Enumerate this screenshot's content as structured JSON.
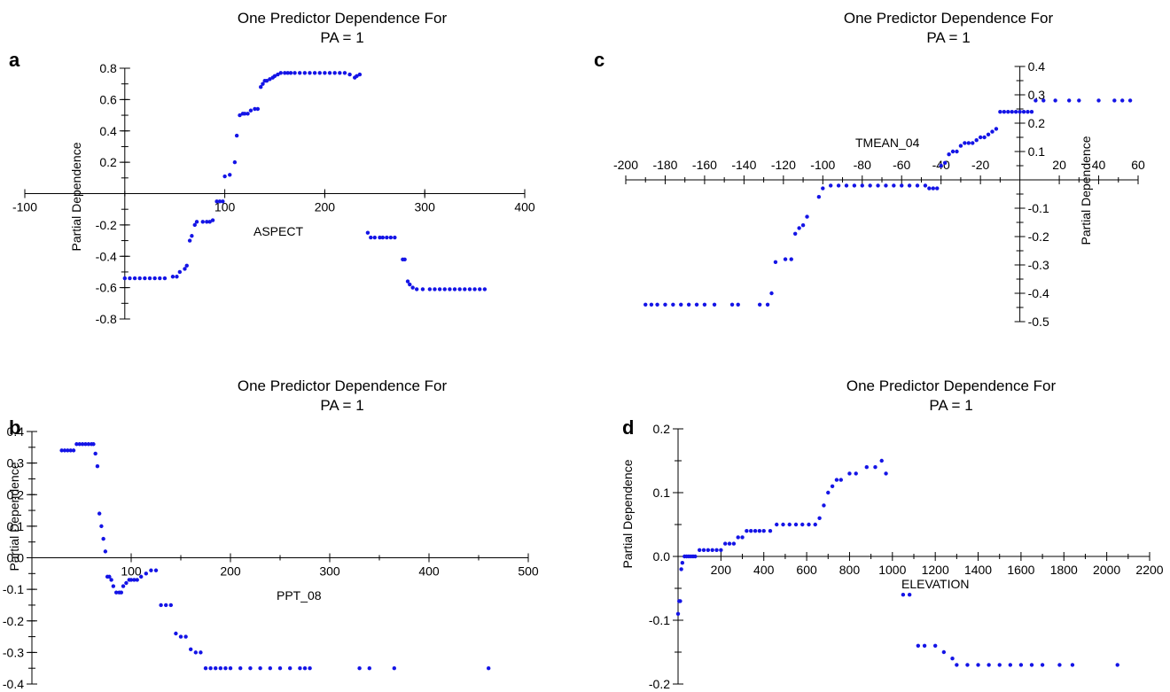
{
  "figure": {
    "colors": {
      "points": "#1414e6",
      "axes": "#000000"
    },
    "panels": [
      {
        "id": "a",
        "letter": "a"
      },
      {
        "id": "b",
        "letter": "b"
      },
      {
        "id": "c",
        "letter": "c"
      },
      {
        "id": "d",
        "letter": "d"
      }
    ]
  },
  "chart_data": [
    {
      "type": "scatter",
      "panel": "a",
      "title": "One Predictor Dependence For PA = 1",
      "title_lines": [
        "One Predictor Dependence For",
        "PA = 1"
      ],
      "xlabel": "ASPECT",
      "ylabel": "Partial Dependence",
      "xlim": [
        -100,
        400
      ],
      "ylim": [
        -0.8,
        0.8
      ],
      "xticks": [
        -100,
        100,
        200,
        300,
        400
      ],
      "xtick_labels": [
        "-100",
        "100",
        "200",
        "300",
        "400"
      ],
      "yticks": [
        -0.8,
        -0.6,
        -0.4,
        -0.2,
        0.2,
        0.4,
        0.6,
        0.8
      ],
      "ytick_labels": [
        "-0.8",
        "-0.6",
        "-0.4",
        "-0.2",
        "0.2",
        "0.4",
        "0.6",
        "0.8"
      ],
      "grid": false,
      "x": [
        0,
        5,
        10,
        15,
        20,
        25,
        30,
        35,
        40,
        48,
        52,
        55,
        60,
        62,
        65,
        67,
        70,
        72,
        78,
        82,
        85,
        88,
        92,
        95,
        98,
        100,
        105,
        110,
        112,
        115,
        118,
        120,
        123,
        126,
        130,
        133,
        136,
        138,
        140,
        142,
        145,
        148,
        150,
        153,
        156,
        160,
        163,
        166,
        170,
        175,
        180,
        185,
        190,
        195,
        200,
        205,
        210,
        215,
        220,
        225,
        230,
        232,
        235,
        243,
        246,
        250,
        255,
        258,
        262,
        266,
        270,
        278,
        280,
        283,
        285,
        288,
        292,
        298,
        305,
        310,
        315,
        320,
        325,
        330,
        335,
        340,
        345,
        350,
        355,
        360
      ],
      "y": [
        -0.54,
        -0.54,
        -0.54,
        -0.54,
        -0.54,
        -0.54,
        -0.54,
        -0.54,
        -0.54,
        -0.53,
        -0.53,
        -0.5,
        -0.48,
        -0.46,
        -0.3,
        -0.27,
        -0.2,
        -0.18,
        -0.18,
        -0.18,
        -0.18,
        -0.17,
        -0.05,
        -0.05,
        -0.05,
        0.11,
        0.12,
        0.2,
        0.37,
        0.5,
        0.51,
        0.51,
        0.51,
        0.53,
        0.54,
        0.54,
        0.68,
        0.7,
        0.72,
        0.72,
        0.73,
        0.74,
        0.75,
        0.76,
        0.77,
        0.77,
        0.77,
        0.77,
        0.77,
        0.77,
        0.77,
        0.77,
        0.77,
        0.77,
        0.77,
        0.77,
        0.77,
        0.77,
        0.77,
        0.76,
        0.74,
        0.75,
        0.76,
        -0.25,
        -0.28,
        -0.28,
        -0.28,
        -0.28,
        -0.28,
        -0.28,
        -0.28,
        -0.42,
        -0.42,
        -0.56,
        -0.58,
        -0.6,
        -0.61,
        -0.61,
        -0.61,
        -0.61,
        -0.61,
        -0.61,
        -0.61,
        -0.61,
        -0.61,
        -0.61,
        -0.61,
        -0.61,
        -0.61,
        -0.61
      ]
    },
    {
      "type": "scatter",
      "panel": "b",
      "title": "One Predictor Dependence For PA = 1",
      "title_lines": [
        "One Predictor Dependence For",
        "PA = 1"
      ],
      "xlabel": "PPT_08",
      "ylabel": "Partial Dependence",
      "xlim": [
        0,
        500
      ],
      "ylim": [
        -0.4,
        0.4
      ],
      "xticks": [
        100,
        200,
        300,
        400,
        500
      ],
      "xtick_labels": [
        "100",
        "200",
        "300",
        "400",
        "500"
      ],
      "yticks": [
        -0.4,
        -0.3,
        -0.2,
        -0.1,
        0.0,
        0.1,
        0.2,
        0.3,
        0.4
      ],
      "ytick_labels": [
        "-0.4",
        "-0.3",
        "-0.2",
        "-0.1",
        "0.0",
        "0.1",
        "0.2",
        "0.3",
        "0.4"
      ],
      "grid": false,
      "x": [
        30,
        33,
        36,
        39,
        42,
        45,
        48,
        51,
        54,
        57,
        60,
        62,
        64,
        66,
        68,
        70,
        72,
        74,
        76,
        78,
        80,
        82,
        85,
        88,
        90,
        92,
        95,
        98,
        100,
        103,
        106,
        110,
        115,
        120,
        125,
        130,
        135,
        140,
        145,
        150,
        155,
        160,
        165,
        170,
        175,
        180,
        185,
        190,
        195,
        200,
        210,
        220,
        230,
        240,
        250,
        260,
        270,
        275,
        280,
        330,
        340,
        365,
        460
      ],
      "y": [
        0.34,
        0.34,
        0.34,
        0.34,
        0.34,
        0.36,
        0.36,
        0.36,
        0.36,
        0.36,
        0.36,
        0.36,
        0.33,
        0.29,
        0.14,
        0.1,
        0.06,
        0.02,
        -0.06,
        -0.06,
        -0.07,
        -0.09,
        -0.11,
        -0.11,
        -0.11,
        -0.09,
        -0.08,
        -0.07,
        -0.07,
        -0.07,
        -0.07,
        -0.06,
        -0.05,
        -0.04,
        -0.04,
        -0.15,
        -0.15,
        -0.15,
        -0.24,
        -0.25,
        -0.25,
        -0.29,
        -0.3,
        -0.3,
        -0.35,
        -0.35,
        -0.35,
        -0.35,
        -0.35,
        -0.35,
        -0.35,
        -0.35,
        -0.35,
        -0.35,
        -0.35,
        -0.35,
        -0.35,
        -0.35,
        -0.35,
        -0.35,
        -0.35,
        -0.35,
        -0.35
      ]
    },
    {
      "type": "scatter",
      "panel": "c",
      "title": "One Predictor Dependence For PA = 1",
      "title_lines": [
        "One Predictor Dependence For",
        "PA = 1"
      ],
      "xlabel": "TMEAN_04",
      "ylabel": "Partial Dependence",
      "xlim": [
        -200,
        60
      ],
      "ylim": [
        -0.5,
        0.4
      ],
      "xticks": [
        -200,
        -180,
        -160,
        -140,
        -120,
        -100,
        -80,
        -60,
        -40,
        -20,
        20,
        40,
        60
      ],
      "xtick_labels": [
        "-200",
        "-180",
        "-160",
        "-140",
        "-120",
        "-100",
        "-80",
        "-60",
        "-40",
        "-20",
        "20",
        "40",
        "60"
      ],
      "yticks": [
        -0.5,
        -0.4,
        -0.3,
        -0.2,
        -0.1,
        0.1,
        0.2,
        0.3,
        0.4
      ],
      "ytick_labels": [
        "-0.5",
        "-0.4",
        "-0.3",
        "-0.2",
        "-0.1",
        "0.1",
        "0.2",
        "0.3",
        "0.4"
      ],
      "grid": false,
      "x": [
        -190,
        -187,
        -184,
        -180,
        -176,
        -172,
        -168,
        -164,
        -160,
        -155,
        -146,
        -143,
        -132,
        -128,
        -126,
        -124,
        -119,
        -116,
        -114,
        -112,
        -110,
        -108,
        -102,
        -100,
        -96,
        -92,
        -88,
        -84,
        -80,
        -76,
        -72,
        -68,
        -64,
        -60,
        -56,
        -52,
        -48,
        -46,
        -44,
        -42,
        -40,
        -38,
        -36,
        -34,
        -32,
        -30,
        -28,
        -26,
        -24,
        -22,
        -20,
        -18,
        -16,
        -14,
        -12,
        -10,
        -8,
        -6,
        -4,
        -2,
        0,
        2,
        4,
        6,
        8,
        12,
        18,
        25,
        30,
        40,
        48,
        52,
        56
      ],
      "y": [
        -0.44,
        -0.44,
        -0.44,
        -0.44,
        -0.44,
        -0.44,
        -0.44,
        -0.44,
        -0.44,
        -0.44,
        -0.44,
        -0.44,
        -0.44,
        -0.44,
        -0.4,
        -0.29,
        -0.28,
        -0.28,
        -0.19,
        -0.17,
        -0.16,
        -0.13,
        -0.06,
        -0.03,
        -0.02,
        -0.02,
        -0.02,
        -0.02,
        -0.02,
        -0.02,
        -0.02,
        -0.02,
        -0.02,
        -0.02,
        -0.02,
        -0.02,
        -0.02,
        -0.03,
        -0.03,
        -0.03,
        0.05,
        0.06,
        0.09,
        0.1,
        0.1,
        0.12,
        0.13,
        0.13,
        0.13,
        0.14,
        0.15,
        0.15,
        0.16,
        0.17,
        0.18,
        0.24,
        0.24,
        0.24,
        0.24,
        0.24,
        0.24,
        0.24,
        0.24,
        0.24,
        0.28,
        0.28,
        0.28,
        0.28,
        0.28,
        0.28,
        0.28,
        0.28,
        0.28
      ]
    },
    {
      "type": "scatter",
      "panel": "d",
      "title": "One Predictor Dependence For PA = 1",
      "title_lines": [
        "One Predictor Dependence For",
        "PA = 1"
      ],
      "xlabel": "ELEVATION",
      "ylabel": "Partial Dependence",
      "xlim": [
        0,
        2200
      ],
      "ylim": [
        -0.2,
        0.2
      ],
      "xticks": [
        200,
        400,
        600,
        800,
        1000,
        1200,
        1400,
        1600,
        1800,
        2000,
        2200
      ],
      "xtick_labels": [
        "200",
        "400",
        "600",
        "800",
        "1000",
        "1200",
        "1400",
        "1600",
        "1800",
        "2000",
        "2200"
      ],
      "yticks": [
        -0.2,
        -0.1,
        0.0,
        0.1,
        0.2
      ],
      "ytick_labels": [
        "-0.2",
        "-0.1",
        "0.0",
        "0.1",
        "0.2"
      ],
      "grid": false,
      "x": [
        0,
        5,
        10,
        15,
        20,
        30,
        40,
        50,
        60,
        70,
        80,
        100,
        120,
        140,
        160,
        180,
        200,
        220,
        240,
        260,
        280,
        300,
        320,
        340,
        360,
        380,
        400,
        430,
        460,
        490,
        520,
        550,
        580,
        610,
        640,
        660,
        680,
        700,
        720,
        740,
        760,
        800,
        830,
        880,
        920,
        950,
        970,
        1050,
        1080,
        1120,
        1150,
        1200,
        1240,
        1280,
        1300,
        1350,
        1400,
        1450,
        1500,
        1550,
        1600,
        1650,
        1700,
        1780,
        1840,
        2050
      ],
      "y": [
        -0.09,
        -0.07,
        -0.07,
        -0.02,
        -0.01,
        0.0,
        0.0,
        0.0,
        0.0,
        0.0,
        0.0,
        0.01,
        0.01,
        0.01,
        0.01,
        0.01,
        0.01,
        0.02,
        0.02,
        0.02,
        0.03,
        0.03,
        0.04,
        0.04,
        0.04,
        0.04,
        0.04,
        0.04,
        0.05,
        0.05,
        0.05,
        0.05,
        0.05,
        0.05,
        0.05,
        0.06,
        0.08,
        0.1,
        0.11,
        0.12,
        0.12,
        0.13,
        0.13,
        0.14,
        0.14,
        0.15,
        0.13,
        -0.06,
        -0.06,
        -0.14,
        -0.14,
        -0.14,
        -0.15,
        -0.16,
        -0.17,
        -0.17,
        -0.17,
        -0.17,
        -0.17,
        -0.17,
        -0.17,
        -0.17,
        -0.17,
        -0.17,
        -0.17,
        -0.17
      ]
    }
  ]
}
